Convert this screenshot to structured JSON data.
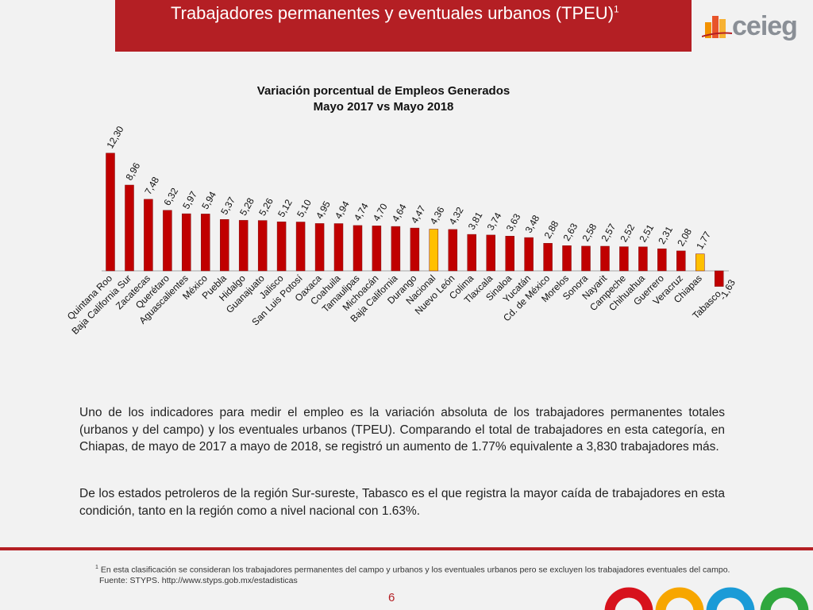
{
  "header": {
    "title": "Trabajadores permanentes y eventuales urbanos (TPEU)",
    "title_sup": "1",
    "logo_text": "ceieg",
    "bar_color": "#b41f24"
  },
  "chart_data": {
    "type": "bar",
    "title": "Variación porcentual de Empleos Generados",
    "subtitle": "Mayo 2017 vs Mayo 2018",
    "categories": [
      "Quintana Roo",
      "Baja California Sur",
      "Zacatecas",
      "Querétaro",
      "Aguascalientes",
      "México",
      "Puebla",
      "Hidalgo",
      "Guanajuato",
      "Jalisco",
      "San Luis Potosí",
      "Oaxaca",
      "Coahuila",
      "Tamaulipas",
      "Michoacán",
      "Baja California",
      "Durango",
      "Nacional",
      "Nuevo León",
      "Colima",
      "Tlaxcala",
      "Sinaloa",
      "Yucatán",
      "Cd. de México",
      "Morelos",
      "Sonora",
      "Nayarit",
      "Campeche",
      "Chihuahua",
      "Guerrero",
      "Veracruz",
      "Chiapas",
      "Tabasco"
    ],
    "values": [
      12.3,
      8.96,
      7.48,
      6.32,
      5.97,
      5.94,
      5.37,
      5.28,
      5.26,
      5.12,
      5.1,
      4.95,
      4.94,
      4.74,
      4.7,
      4.64,
      4.47,
      4.36,
      4.32,
      3.81,
      3.74,
      3.63,
      3.48,
      2.88,
      2.63,
      2.58,
      2.57,
      2.52,
      2.51,
      2.31,
      2.08,
      1.77,
      -1.63
    ],
    "value_labels": [
      "12,30",
      "8,96",
      "7,48",
      "6,32",
      "5,97",
      "5,94",
      "5,37",
      "5,28",
      "5,26",
      "5,12",
      "5,10",
      "4,95",
      "4,94",
      "4,74",
      "4,70",
      "4,64",
      "4,47",
      "4,36",
      "4,32",
      "3,81",
      "3,74",
      "3,63",
      "3,48",
      "2,88",
      "2,63",
      "2,58",
      "2,57",
      "2,52",
      "2,51",
      "2,31",
      "2,08",
      "1,77",
      "-1,63"
    ],
    "highlight": [
      "Nacional",
      "Chiapas"
    ],
    "colors": {
      "bar": "#c00000",
      "highlight": "#ffc000",
      "axis": "#a6a6a6"
    },
    "xlabel": "",
    "ylabel": "",
    "ylim": [
      -1.63,
      12.3
    ],
    "grid": false,
    "legend": "none"
  },
  "paragraphs": [
    "Uno de los indicadores para medir el empleo es la variación absoluta de los trabajadores permanentes totales (urbanos y del campo) y los eventuales urbanos (TPEU). Comparando el total de trabajadores en esta categoría, en Chiapas, de mayo de 2017 a mayo de 2018, se registró un aumento de 1.77% equivalente a 3,830 trabajadores más.",
    "De los estados petroleros de la región Sur-sureste, Tabasco es el que registra la mayor caída de trabajadores en esta condición, tanto en la región como a nivel nacional con 1.63%."
  ],
  "footnote": {
    "sup": "1",
    "line1": "En esta clasificación se consideran los trabajadores permanentes del campo y urbanos y los eventuales urbanos pero se excluyen los trabajadores eventuales del campo.",
    "line2": "Fuente: STYPS. http://www.styps.gob.mx/estadisticas"
  },
  "page_number": "6",
  "decoration_colors": [
    "#d7121c",
    "#f7a600",
    "#1b9bd7",
    "#2fa73e"
  ]
}
